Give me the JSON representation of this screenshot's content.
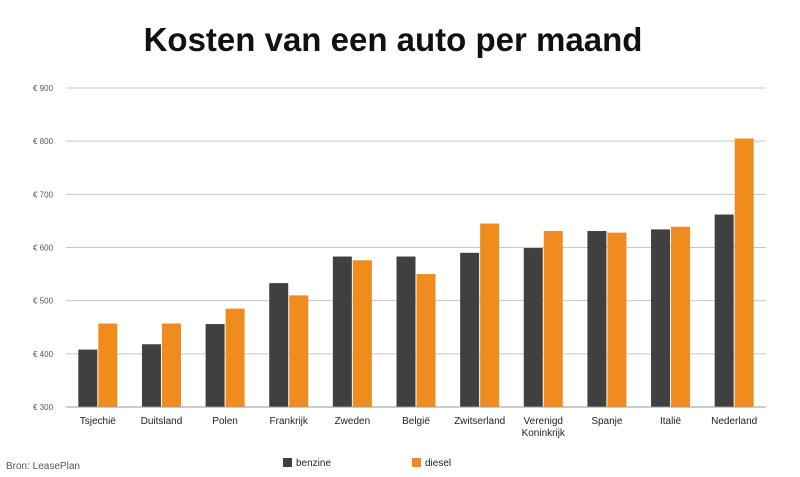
{
  "chart_data": {
    "type": "bar",
    "title": "Kosten van een auto per maand",
    "xlabel": "",
    "ylabel": "",
    "ylim": [
      300,
      900
    ],
    "yticks": [
      300,
      400,
      500,
      600,
      700,
      800,
      900
    ],
    "ytick_prefix": "€",
    "grid": true,
    "legend_position": "bottom",
    "categories": [
      [
        "Tsjechië"
      ],
      [
        "Duitsland"
      ],
      [
        "Polen"
      ],
      [
        "Frankrijk"
      ],
      [
        "Zweden"
      ],
      [
        "België"
      ],
      [
        "Zwitserland"
      ],
      [
        "Verenigd",
        "Koninkrijk"
      ],
      [
        "Spanje"
      ],
      [
        "Italië"
      ],
      [
        "Nederland"
      ]
    ],
    "series": [
      {
        "name": "benzine",
        "color": "#404040",
        "values": [
          408,
          418,
          456,
          533,
          583,
          583,
          590,
          599,
          631,
          634,
          662
        ]
      },
      {
        "name": "diesel",
        "color": "#f08c1e",
        "values": [
          457,
          457,
          485,
          510,
          576,
          550,
          645,
          631,
          628,
          639,
          805
        ]
      }
    ],
    "source": "Bron: LeasePlan"
  }
}
